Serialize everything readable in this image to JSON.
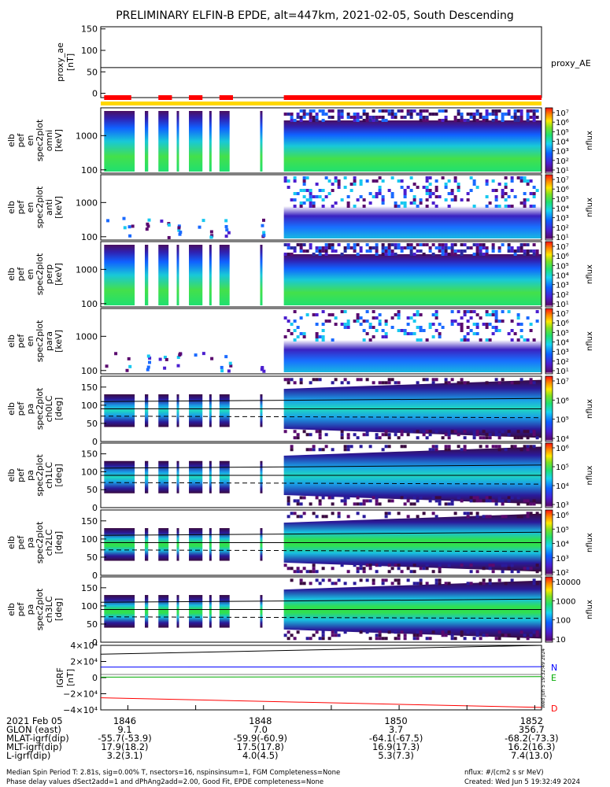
{
  "title": "PRELIMINARY ELFIN-B EPDE, alt=447km, 2021-02-05, South Descending",
  "colors": {
    "coverage_red": "#ff0000",
    "coverage_yellow": "#ffd700",
    "grf_N": "#0000ff",
    "grf_E": "#00aa00",
    "grf_D": "#ff0000"
  },
  "chart_data": [
    {
      "type": "line",
      "panel": "proxy_ae",
      "ylabel": "proxy_ae [nT]",
      "ytick_labels": [
        "150",
        "100",
        "50",
        "0"
      ],
      "ylim": [
        -10,
        155
      ],
      "legend": "proxy_AE",
      "series": [
        {
          "name": "proxy_AE",
          "values": [
            60,
            60
          ]
        }
      ]
    },
    {
      "type": "heatmap",
      "panel": "spec_omni",
      "ylabel": [
        "elb",
        "pef",
        "en",
        "spec2plot",
        "omni",
        "[keV]"
      ],
      "ytick_labels": [
        "1000",
        "100"
      ],
      "ylim": [
        80,
        6500
      ],
      "colorbar_label": "nflux",
      "colorbar_ticks": [
        "10⁷",
        "10⁶",
        "10⁵",
        "10⁴",
        "10³",
        "10²",
        "10¹"
      ]
    },
    {
      "type": "heatmap",
      "panel": "spec_anti",
      "ylabel": [
        "elb",
        "pef",
        "en",
        "spec2plot",
        "anti",
        "[keV]"
      ],
      "ytick_labels": [
        "1000",
        "100"
      ],
      "ylim": [
        80,
        6500
      ],
      "colorbar_label": "nflux",
      "colorbar_ticks": [
        "10⁷",
        "10⁶",
        "10⁵",
        "10⁴",
        "10³",
        "10²",
        "10¹"
      ]
    },
    {
      "type": "heatmap",
      "panel": "spec_perp",
      "ylabel": [
        "elb",
        "pef",
        "en",
        "spec2plot",
        "perp",
        "[keV]"
      ],
      "ytick_labels": [
        "1000",
        "100"
      ],
      "ylim": [
        80,
        6500
      ],
      "colorbar_label": "nflux",
      "colorbar_ticks": [
        "10⁷",
        "10⁶",
        "10⁵",
        "10⁴",
        "10³",
        "10²",
        "10¹"
      ]
    },
    {
      "type": "heatmap",
      "panel": "spec_para",
      "ylabel": [
        "elb",
        "pef",
        "en",
        "spec2plot",
        "para",
        "[keV]"
      ],
      "ytick_labels": [
        "1000",
        "100"
      ],
      "ylim": [
        80,
        6500
      ],
      "colorbar_label": "nflux",
      "colorbar_ticks": [
        "10⁷",
        "10⁶",
        "10⁵",
        "10⁴",
        "10³",
        "10²",
        "10¹"
      ]
    },
    {
      "type": "heatmap",
      "panel": "pa_ch0",
      "ylabel": [
        "elb",
        "pef",
        "pa",
        "spec2plot",
        "ch0LC",
        "[deg]"
      ],
      "ytick_labels": [
        "150",
        "100",
        "50",
        "0"
      ],
      "ylim": [
        0,
        180
      ],
      "colorbar_label": "nflux",
      "colorbar_ticks": [
        "10⁷",
        "10⁶",
        "10⁵",
        "10⁴"
      ]
    },
    {
      "type": "heatmap",
      "panel": "pa_ch1",
      "ylabel": [
        "elb",
        "pef",
        "pa",
        "spec2plot",
        "ch1LC",
        "[deg]"
      ],
      "ytick_labels": [
        "150",
        "100",
        "50",
        "0"
      ],
      "ylim": [
        0,
        180
      ],
      "colorbar_label": "nflux",
      "colorbar_ticks": [
        "10⁶",
        "10⁵",
        "10⁴",
        "10³"
      ]
    },
    {
      "type": "heatmap",
      "panel": "pa_ch2",
      "ylabel": [
        "elb",
        "pef",
        "pa",
        "spec2plot",
        "ch2LC",
        "[deg]"
      ],
      "ytick_labels": [
        "150",
        "100",
        "50",
        "0"
      ],
      "ylim": [
        0,
        180
      ],
      "colorbar_label": "nflux",
      "colorbar_ticks": [
        "10⁶",
        "10⁵",
        "10⁴",
        "10³",
        "10²"
      ]
    },
    {
      "type": "heatmap",
      "panel": "pa_ch3",
      "ylabel": [
        "elb",
        "pef",
        "pa",
        "spec2plot",
        "ch3LC",
        "[deg]"
      ],
      "ytick_labels": [
        "150",
        "100",
        "50",
        "0"
      ],
      "ylim": [
        0,
        180
      ],
      "colorbar_label": "nflux",
      "colorbar_ticks": [
        "10000",
        "1000",
        "100",
        "10"
      ]
    },
    {
      "type": "line",
      "panel": "igrf",
      "ylabel": [
        "IGRF",
        "[nT]"
      ],
      "ytick_labels": [
        "4×10⁴",
        "2×10⁴",
        "0",
        "−2×10⁴",
        "−4×10⁴"
      ],
      "ylim": [
        -40000,
        40000
      ],
      "series": [
        {
          "name": "N",
          "values": [
            13000,
            13500
          ]
        },
        {
          "name": "E",
          "values": [
            600,
            1200
          ]
        },
        {
          "name": "D",
          "values": [
            -25000,
            -37000
          ]
        },
        {
          "name": "total",
          "values": [
            29000,
            40000
          ]
        }
      ]
    }
  ],
  "orbit_table": {
    "rows": [
      [
        "2021 Feb 05",
        "1846",
        "1848",
        "1850",
        "1852"
      ],
      [
        "GLON (east)",
        "9.1",
        "7.0",
        "3.7",
        "356.7"
      ],
      [
        "MLAT-igrf(dip)",
        "-55.7(-53.9)",
        "-59.9(-60.9)",
        "-64.1(-67.5)",
        "-68.2(-73.3)"
      ],
      [
        "MLT-igrf(dip)",
        "17.9(18.2)",
        "17.5(17.8)",
        "16.9(17.3)",
        "16.2(16.3)"
      ],
      [
        "L-igrf(dip)",
        "3.2(3.1)",
        "4.0(4.5)",
        "5.3(7.3)",
        "7.4(13.0)"
      ]
    ]
  },
  "footer": {
    "line1_left": "Median Spin Period T: 2.81s, sig=0.00% T, nsectors=16, nspinsinsum=1, FGM Completeness=None",
    "line1_right": "nflux: #/(cm2 s sr MeV)",
    "line2_left": "Phase delay values dSect2add=1 and dPhAng2add=2.00, Good Fit, EPDE completeness=None",
    "line2_right": "Created: Wed Jun  5 19:32:49 2024"
  },
  "side_stamp": "Wed Jun  5 19:32:49 2024"
}
